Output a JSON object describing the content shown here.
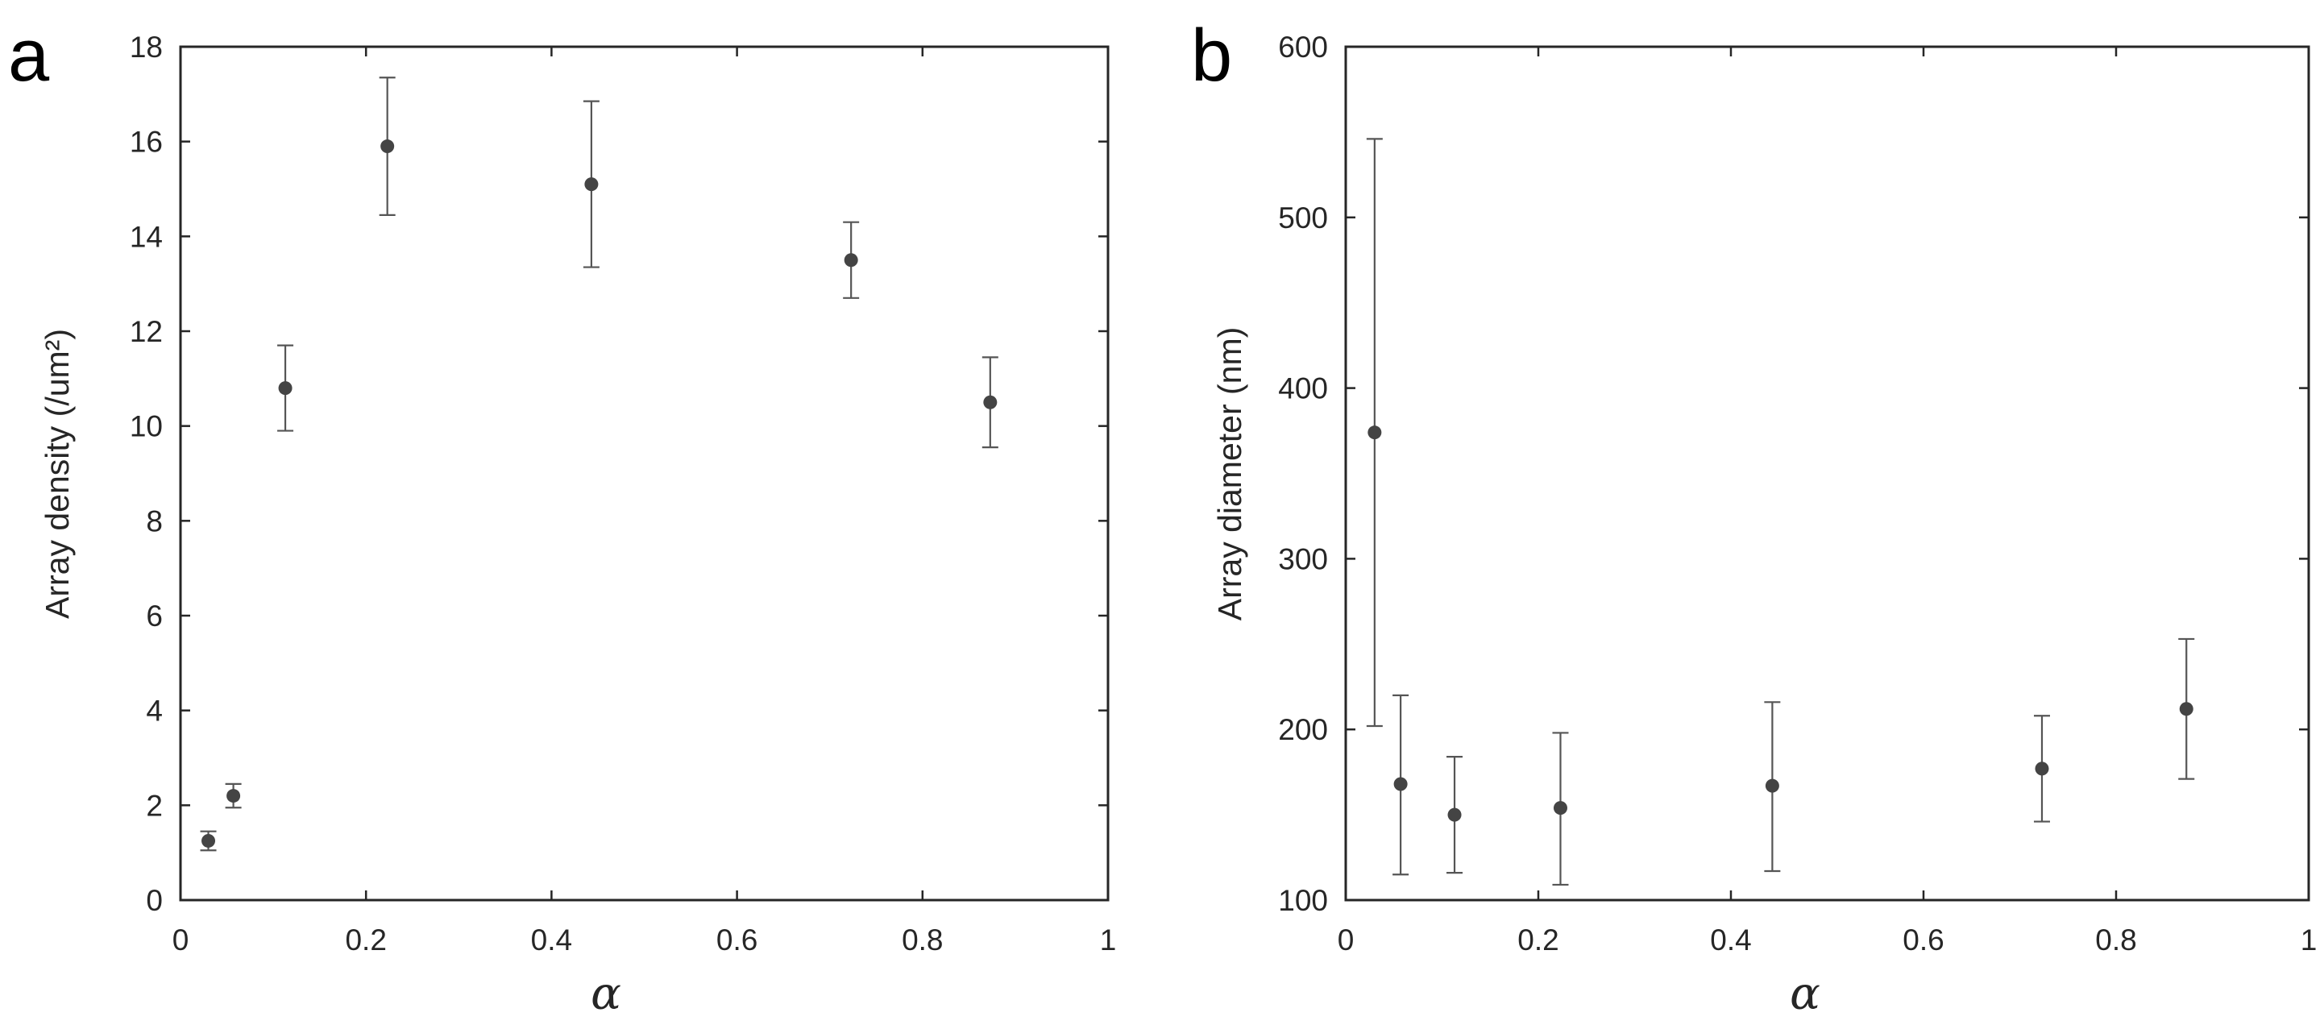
{
  "chart_data": [
    {
      "panel": "a",
      "type": "scatter",
      "xlabel": "α",
      "ylabel": "Array density (/um²)",
      "xlim": [
        0,
        1
      ],
      "ylim": [
        0,
        18
      ],
      "xticks": [
        "0",
        "0.2",
        "0.4",
        "0.6",
        "0.8",
        "1"
      ],
      "yticks": [
        "0",
        "2",
        "4",
        "6",
        "8",
        "10",
        "12",
        "14",
        "16",
        "18"
      ],
      "grid": false,
      "points": [
        {
          "x": 0.03,
          "y": 1.25,
          "err_low": 1.05,
          "err_high": 1.45
        },
        {
          "x": 0.057,
          "y": 2.2,
          "err_low": 1.95,
          "err_high": 2.45
        },
        {
          "x": 0.113,
          "y": 10.8,
          "err_low": 9.9,
          "err_high": 11.7
        },
        {
          "x": 0.223,
          "y": 15.9,
          "err_low": 14.45,
          "err_high": 17.35
        },
        {
          "x": 0.443,
          "y": 15.1,
          "err_low": 13.35,
          "err_high": 16.85
        },
        {
          "x": 0.723,
          "y": 13.5,
          "err_low": 12.7,
          "err_high": 14.3
        },
        {
          "x": 0.873,
          "y": 10.5,
          "err_low": 9.55,
          "err_high": 11.45
        }
      ]
    },
    {
      "panel": "b",
      "type": "scatter",
      "xlabel": "α",
      "ylabel": "Array diameter (nm)",
      "xlim": [
        0,
        1
      ],
      "ylim": [
        100,
        600
      ],
      "xticks": [
        "0",
        "0.2",
        "0.4",
        "0.6",
        "0.8",
        "1"
      ],
      "yticks": [
        "100",
        "200",
        "300",
        "400",
        "500",
        "600"
      ],
      "grid": false,
      "points": [
        {
          "x": 0.03,
          "y": 374,
          "err_low": 202,
          "err_high": 546
        },
        {
          "x": 0.057,
          "y": 168,
          "err_low": 115,
          "err_high": 220
        },
        {
          "x": 0.113,
          "y": 150,
          "err_low": 116,
          "err_high": 184
        },
        {
          "x": 0.223,
          "y": 154,
          "err_low": 109,
          "err_high": 198
        },
        {
          "x": 0.443,
          "y": 167,
          "err_low": 117,
          "err_high": 216
        },
        {
          "x": 0.723,
          "y": 177,
          "err_low": 146,
          "err_high": 208
        },
        {
          "x": 0.873,
          "y": 212,
          "err_low": 171,
          "err_high": 253
        }
      ]
    }
  ]
}
